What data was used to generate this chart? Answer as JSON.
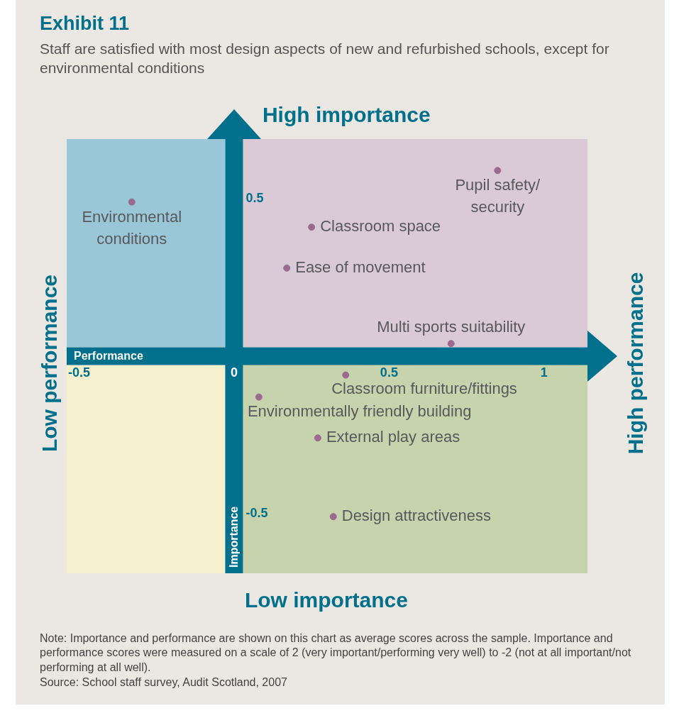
{
  "chart_data": {
    "type": "scatter",
    "title": "Exhibit 11",
    "subtitle": "Staff are satisfied with most design aspects of new and refurbished schools, except for environmental conditions",
    "xlabel": "Performance",
    "ylabel": "Importance",
    "annotations": [
      "High importance",
      "Low importance",
      "Low performance",
      "High performance",
      "Note: Importance and performance are shown on this chart as average scores across the sample. Importance and performance scores were measured on a scale of 2 (very important/performing very well) to -2 (not at all important/not performing at all well).",
      "Source: School staff survey, Audit Scotland, 2007"
    ],
    "xlim": [
      -0.54,
      1.14
    ],
    "ylim": [
      -0.69,
      0.69
    ],
    "xticks": [
      -0.5,
      0,
      0.5,
      1
    ],
    "yticks": [
      -0.5,
      0.5
    ],
    "grid": false,
    "marker": "circle",
    "series": [
      {
        "name": "Environmental conditions",
        "color": "#9a6b8f",
        "x": [
          -0.33
        ],
        "values": [
          0.49
        ]
      },
      {
        "name": "Pupil safety/ security",
        "color": "#9a6b8f",
        "x": [
          0.85
        ],
        "values": [
          0.59
        ]
      },
      {
        "name": "Classroom space",
        "color": "#9a6b8f",
        "x": [
          0.25
        ],
        "values": [
          0.41
        ]
      },
      {
        "name": "Ease of movement",
        "color": "#9a6b8f",
        "x": [
          0.17
        ],
        "values": [
          0.28
        ]
      },
      {
        "name": "Multi sports suitability",
        "color": "#9a6b8f",
        "x": [
          0.7
        ],
        "values": [
          0.04
        ]
      },
      {
        "name": "Classroom furniture/fittings",
        "color": "#9a6b8f",
        "x": [
          0.36
        ],
        "values": [
          -0.06
        ]
      },
      {
        "name": "Environmentally friendly building",
        "color": "#9a6b8f",
        "x": [
          0.08
        ],
        "values": [
          -0.13
        ]
      },
      {
        "name": "External play areas",
        "color": "#9a6b8f",
        "x": [
          0.27
        ],
        "values": [
          -0.26
        ]
      },
      {
        "name": "Design attractiveness",
        "color": "#9a6b8f",
        "x": [
          0.32
        ],
        "values": [
          -0.51
        ]
      }
    ]
  }
}
